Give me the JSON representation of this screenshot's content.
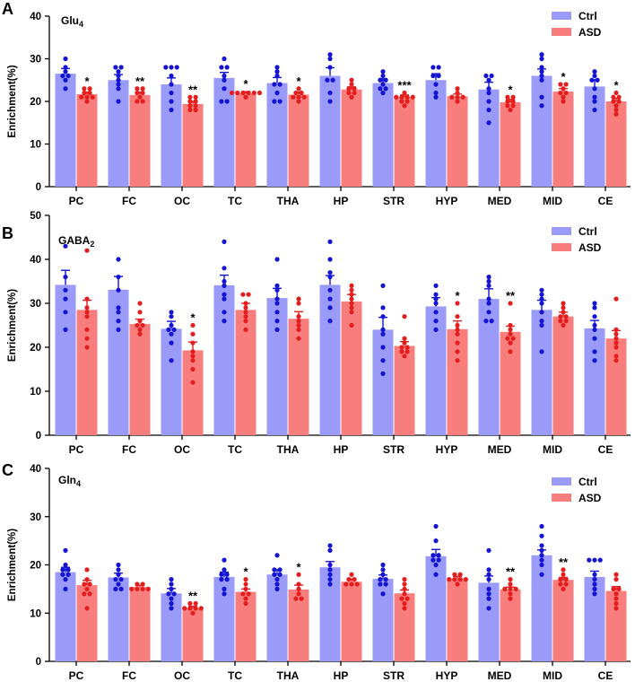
{
  "colors": {
    "ctrl_bar": "#9a9af8",
    "ctrl_dot": "#1414d2",
    "asd_bar": "#f87e7e",
    "asd_dot": "#e41e1e"
  },
  "chart_data": [
    {
      "type": "bar",
      "panel": "A",
      "title": "Glu",
      "title_sub": "4",
      "ylabel": "Enrichment(%)",
      "ylim": [
        0,
        40
      ],
      "yticks": [
        0,
        10,
        20,
        30,
        40
      ],
      "legend": [
        "Ctrl",
        "ASD"
      ],
      "categories": [
        "PC",
        "FC",
        "OC",
        "TC",
        "THA",
        "HP",
        "STR",
        "HYP",
        "MED",
        "MID",
        "CE"
      ],
      "series": [
        {
          "name": "Ctrl",
          "values": [
            26.5,
            25.0,
            24.0,
            25.5,
            24.3,
            26.0,
            24.3,
            25.0,
            22.8,
            26.0,
            23.5
          ],
          "errors": [
            1.2,
            1.3,
            1.5,
            1.3,
            1.3,
            1.9,
            1.0,
            1.5,
            1.7,
            1.6,
            1.6
          ],
          "points": [
            [
              30,
              28,
              27,
              26,
              26,
              25,
              23
            ],
            [
              28,
              28,
              27,
              26,
              25,
              24,
              23,
              20
            ],
            [
              28,
              28,
              28,
              26,
              24,
              22,
              20,
              18
            ],
            [
              30,
              28,
              28,
              26,
              25,
              23,
              20,
              20
            ],
            [
              28,
              27,
              26,
              24,
              24,
              22,
              20,
              20
            ],
            [
              31,
              30,
              28,
              25,
              25,
              22,
              20
            ],
            [
              27,
              26,
              25,
              25,
              24,
              23,
              23,
              22
            ],
            [
              28,
              28,
              26,
              26,
              24,
              22,
              21
            ],
            [
              26,
              26,
              25,
              23,
              22,
              20,
              18,
              15
            ],
            [
              31,
              30,
              28,
              27,
              26,
              25,
              21,
              19
            ],
            [
              27,
              26,
              25,
              25,
              23,
              21,
              20,
              18
            ]
          ]
        },
        {
          "name": "ASD",
          "values": [
            21.7,
            21.5,
            19.4,
            21.9,
            21.6,
            22.8,
            21.0,
            21.2,
            19.8,
            22.3,
            20.0
          ],
          "errors": [
            0.5,
            0.7,
            0.6,
            0.4,
            0.6,
            0.6,
            0.5,
            0.5,
            0.7,
            0.7,
            0.7
          ],
          "points": [
            [
              23,
              23,
              22,
              22,
              21,
              21,
              21,
              20
            ],
            [
              23,
              23,
              22,
              22,
              21,
              20,
              20
            ],
            [
              21,
              21,
              20,
              20,
              19,
              19,
              18,
              18
            ],
            [
              22,
              22,
              22,
              22,
              22,
              22,
              21
            ],
            [
              23,
              22,
              22,
              21,
              21,
              21,
              20
            ],
            [
              25,
              24,
              23,
              23,
              22,
              22,
              21
            ],
            [
              22,
              21,
              21,
              21,
              21,
              20,
              20,
              19
            ],
            [
              23,
              22,
              21,
              21,
              21,
              20
            ],
            [
              21,
              21,
              20,
              20,
              19,
              19,
              18
            ],
            [
              24,
              24,
              23,
              22,
              22,
              21,
              20
            ],
            [
              22,
              21,
              21,
              20,
              20,
              19,
              18,
              17
            ]
          ]
        }
      ],
      "significance": [
        "*",
        "**",
        "**",
        "*",
        "*",
        "",
        "***",
        "",
        "*",
        "*",
        "*"
      ]
    },
    {
      "type": "bar",
      "panel": "B",
      "title": "GABA",
      "title_sub": "2",
      "ylabel": "Enrichment(%)",
      "ylim": [
        0,
        50
      ],
      "yticks": [
        0,
        10,
        20,
        30,
        40,
        50
      ],
      "legend": [
        "Ctrl",
        "ASD"
      ],
      "categories": [
        "PC",
        "FC",
        "OC",
        "TC",
        "THA",
        "HP",
        "STR",
        "HYP",
        "MED",
        "MID",
        "CE"
      ],
      "series": [
        {
          "name": "Ctrl",
          "values": [
            34.2,
            33.1,
            24.2,
            34.1,
            31.2,
            34.2,
            24.0,
            29.3,
            31.0,
            28.5,
            24.3
          ],
          "errors": [
            3.3,
            3.0,
            1.7,
            2.3,
            2.2,
            2.1,
            2.8,
            2.0,
            2.3,
            2.2,
            1.8
          ],
          "points": [
            [
              43,
              36,
              33,
              31,
              28,
              24
            ],
            [
              40,
              36,
              33,
              29,
              28,
              26,
              24
            ],
            [
              28,
              27,
              25,
              24,
              24,
              23,
              21,
              17
            ],
            [
              44,
              38,
              35,
              34,
              32,
              31,
              28,
              26
            ],
            [
              40,
              34,
              33,
              31,
              30,
              28,
              26,
              24
            ],
            [
              44,
              40,
              37,
              36,
              33,
              31,
              29,
              26
            ],
            [
              34,
              29,
              27,
              24,
              23,
              20,
              17,
              14
            ],
            [
              34,
              32,
              31,
              30,
              28,
              26,
              24
            ],
            [
              36,
              35,
              34,
              31,
              30,
              28,
              26,
              26
            ],
            [
              33,
              32,
              31,
              30,
              28,
              26,
              25,
              19
            ],
            [
              30,
              29,
              27,
              25,
              24,
              22,
              19,
              17
            ]
          ]
        },
        {
          "name": "ASD",
          "values": [
            28.5,
            25.3,
            19.3,
            28.5,
            26.5,
            30.4,
            20.3,
            24.1,
            23.5,
            27.0,
            22.0
          ],
          "errors": [
            2.2,
            1.1,
            1.9,
            1.5,
            1.6,
            1.6,
            1.0,
            1.9,
            1.3,
            1.0,
            1.8
          ],
          "points": [
            [
              42,
              31,
              29,
              28,
              27,
              24,
              22,
              20
            ],
            [
              30,
              28,
              26,
              25,
              25,
              24,
              23
            ],
            [
              25,
              23,
              21,
              19,
              18,
              17,
              15,
              12
            ],
            [
              32,
              32,
              30,
              29,
              28,
              27,
              26,
              24
            ],
            [
              31,
              30,
              27,
              26,
              25,
              24,
              22
            ],
            [
              34,
              33,
              32,
              31,
              30,
              29,
              28,
              25
            ],
            [
              27,
              22,
              21,
              20,
              20,
              19,
              19,
              18
            ],
            [
              30,
              27,
              25,
              24,
              23,
              21,
              19,
              17
            ],
            [
              30,
              25,
              24,
              23,
              22,
              22,
              21,
              19
            ],
            [
              30,
              29,
              28,
              27,
              27,
              26,
              26,
              25
            ],
            [
              31,
              24,
              23,
              22,
              21,
              20,
              18,
              17
            ]
          ]
        }
      ],
      "significance": [
        "",
        "",
        "*",
        "",
        "",
        "",
        "",
        "*",
        "**",
        "",
        ""
      ]
    },
    {
      "type": "bar",
      "panel": "C",
      "title": "Gln",
      "title_sub": "4",
      "ylabel": "Enrichment(%)",
      "ylim": [
        0,
        40
      ],
      "yticks": [
        0,
        10,
        20,
        30,
        40
      ],
      "legend": [
        "Ctrl",
        "ASD"
      ],
      "categories": [
        "PC",
        "FC",
        "OC",
        "TC",
        "THA",
        "HP",
        "STR",
        "HYP",
        "MED",
        "MID",
        "CE"
      ],
      "series": [
        {
          "name": "Ctrl",
          "values": [
            18.5,
            17.4,
            14.1,
            17.5,
            18.0,
            19.5,
            17.1,
            21.8,
            16.3,
            22.0,
            17.5
          ],
          "errors": [
            1.0,
            0.9,
            1.0,
            1.0,
            1.0,
            1.2,
            0.8,
            1.4,
            1.4,
            1.1,
            1.2
          ],
          "points": [
            [
              23,
              20,
              19,
              19,
              18,
              18,
              17,
              15
            ],
            [
              20,
              19,
              18,
              17,
              17,
              16,
              15,
              15
            ],
            [
              17,
              16,
              15,
              14,
              14,
              13,
              12,
              11
            ],
            [
              21,
              19,
              18,
              18,
              17,
              17,
              15,
              14
            ],
            [
              22,
              19,
              19,
              18,
              18,
              17,
              16,
              15
            ],
            [
              24,
              23,
              20,
              19,
              18,
              17,
              16
            ],
            [
              20,
              19,
              18,
              17,
              17,
              16,
              16,
              14
            ],
            [
              28,
              25,
              22,
              22,
              21,
              21,
              20,
              18
            ],
            [
              23,
              19,
              18,
              17,
              15,
              14,
              13,
              11
            ],
            [
              28,
              26,
              24,
              23,
              22,
              21,
              20,
              18
            ],
            [
              21,
              21,
              21,
              18,
              17,
              16,
              15,
              14
            ]
          ]
        },
        {
          "name": "ASD",
          "values": [
            15.8,
            15.4,
            11.1,
            14.4,
            14.9,
            16.5,
            14.1,
            17.2,
            14.9,
            16.9,
            14.6
          ],
          "errors": [
            1.0,
            0.3,
            0.3,
            0.6,
            0.9,
            0.6,
            0.7,
            0.4,
            0.5,
            0.5,
            0.9
          ],
          "points": [
            [
              19,
              17,
              16,
              16,
              15,
              14,
              14,
              11
            ],
            [
              16,
              16,
              15,
              15,
              15,
              15
            ],
            [
              12,
              12,
              11,
              11,
              11,
              11,
              10
            ],
            [
              17,
              16,
              15,
              14,
              14,
              13,
              12
            ],
            [
              18,
              16,
              15,
              14,
              13,
              13
            ],
            [
              18,
              17,
              17,
              16,
              16,
              16
            ],
            [
              17,
              16,
              15,
              14,
              13,
              13,
              12,
              11
            ],
            [
              18,
              18,
              17,
              17,
              17,
              17,
              16
            ],
            [
              17,
              16,
              15,
              15,
              15,
              14,
              13
            ],
            [
              19,
              18,
              17,
              17,
              16,
              16,
              15
            ],
            [
              18,
              17,
              15,
              15,
              14,
              13,
              12,
              11
            ]
          ]
        }
      ],
      "significance": [
        "",
        "",
        "**",
        "*",
        "*",
        "",
        "",
        "",
        "**",
        "**",
        ""
      ]
    }
  ]
}
